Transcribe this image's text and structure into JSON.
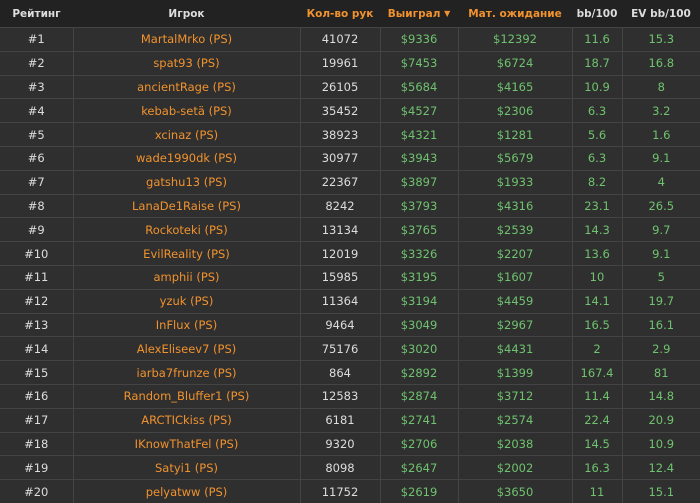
{
  "headers": {
    "rank": "Рейтинг",
    "player": "Игрок",
    "hands": "Кол-во рук",
    "won": "Выиграл",
    "won_sort_icon": "caret-down-icon",
    "ev": "Мат. ожидание",
    "bb100": "bb/100",
    "evbb100": "EV bb/100"
  },
  "colors": {
    "accent": "#f0922e",
    "positive": "#6fc36f",
    "header_bg": "#222222",
    "row_bg": "#2f2f2f"
  },
  "rows": [
    {
      "rank": "#1",
      "player": "MartalMrko (PS)",
      "hands": "41072",
      "won": "$9336",
      "ev": "$12392",
      "bb": "11.6",
      "evbb": "15.3"
    },
    {
      "rank": "#2",
      "player": "spat93 (PS)",
      "hands": "19961",
      "won": "$7453",
      "ev": "$6724",
      "bb": "18.7",
      "evbb": "16.8"
    },
    {
      "rank": "#3",
      "player": "ancientRage (PS)",
      "hands": "26105",
      "won": "$5684",
      "ev": "$4165",
      "bb": "10.9",
      "evbb": "8"
    },
    {
      "rank": "#4",
      "player": "kebab-setä (PS)",
      "hands": "35452",
      "won": "$4527",
      "ev": "$2306",
      "bb": "6.3",
      "evbb": "3.2"
    },
    {
      "rank": "#5",
      "player": "xcinaz (PS)",
      "hands": "38923",
      "won": "$4321",
      "ev": "$1281",
      "bb": "5.6",
      "evbb": "1.6"
    },
    {
      "rank": "#6",
      "player": "wade1990dk (PS)",
      "hands": "30977",
      "won": "$3943",
      "ev": "$5679",
      "bb": "6.3",
      "evbb": "9.1"
    },
    {
      "rank": "#7",
      "player": "gatshu13 (PS)",
      "hands": "22367",
      "won": "$3897",
      "ev": "$1933",
      "bb": "8.2",
      "evbb": "4"
    },
    {
      "rank": "#8",
      "player": "LanaDe1Raise (PS)",
      "hands": "8242",
      "won": "$3793",
      "ev": "$4316",
      "bb": "23.1",
      "evbb": "26.5"
    },
    {
      "rank": "#9",
      "player": "Rockoteki (PS)",
      "hands": "13134",
      "won": "$3765",
      "ev": "$2539",
      "bb": "14.3",
      "evbb": "9.7"
    },
    {
      "rank": "#10",
      "player": "EvilReality (PS)",
      "hands": "12019",
      "won": "$3326",
      "ev": "$2207",
      "bb": "13.6",
      "evbb": "9.1"
    },
    {
      "rank": "#11",
      "player": "amphii (PS)",
      "hands": "15985",
      "won": "$3195",
      "ev": "$1607",
      "bb": "10",
      "evbb": "5"
    },
    {
      "rank": "#12",
      "player": "yzuk (PS)",
      "hands": "11364",
      "won": "$3194",
      "ev": "$4459",
      "bb": "14.1",
      "evbb": "19.7"
    },
    {
      "rank": "#13",
      "player": "InFlux (PS)",
      "hands": "9464",
      "won": "$3049",
      "ev": "$2967",
      "bb": "16.5",
      "evbb": "16.1"
    },
    {
      "rank": "#14",
      "player": "AlexEliseev7 (PS)",
      "hands": "75176",
      "won": "$3020",
      "ev": "$4431",
      "bb": "2",
      "evbb": "2.9"
    },
    {
      "rank": "#15",
      "player": "iarba7frunze (PS)",
      "hands": "864",
      "won": "$2892",
      "ev": "$1399",
      "bb": "167.4",
      "evbb": "81"
    },
    {
      "rank": "#16",
      "player": "Random_Bluffer1 (PS)",
      "hands": "12583",
      "won": "$2874",
      "ev": "$3712",
      "bb": "11.4",
      "evbb": "14.8"
    },
    {
      "rank": "#17",
      "player": "ARCTICkiss (PS)",
      "hands": "6181",
      "won": "$2741",
      "ev": "$2574",
      "bb": "22.4",
      "evbb": "20.9"
    },
    {
      "rank": "#18",
      "player": "IKnowThatFel (PS)",
      "hands": "9320",
      "won": "$2706",
      "ev": "$2038",
      "bb": "14.5",
      "evbb": "10.9"
    },
    {
      "rank": "#19",
      "player": "Satyi1 (PS)",
      "hands": "8098",
      "won": "$2647",
      "ev": "$2002",
      "bb": "16.3",
      "evbb": "12.4"
    },
    {
      "rank": "#20",
      "player": "pelyatww (PS)",
      "hands": "11752",
      "won": "$2619",
      "ev": "$3650",
      "bb": "11",
      "evbb": "15.1"
    }
  ]
}
